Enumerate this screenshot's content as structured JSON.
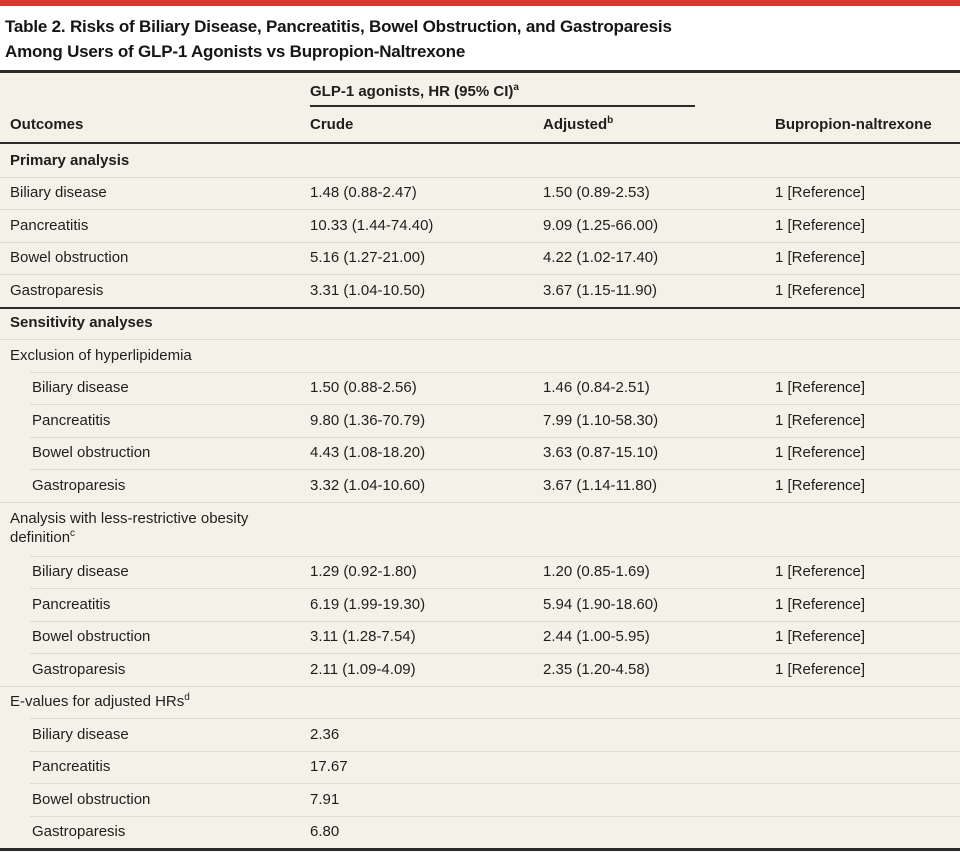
{
  "colors": {
    "accent_red": "#d8382e",
    "table_bg": "#f4f2e8",
    "dark_line": "#2c2b27",
    "thin_line": "#dfdccb"
  },
  "title": {
    "line1": "Table 2. Risks of Biliary Disease, Pancreatitis, Bowel Obstruction, and Gastroparesis",
    "line2": "Among Users of GLP-1 Agonists vs Bupropion-Naltrexone"
  },
  "header": {
    "outcomes": "Outcomes",
    "span_label": "GLP-1 agonists, HR (95% CI)",
    "span_sup": "a",
    "crude": "Crude",
    "adjusted": "Adjusted",
    "adjusted_sup": "b",
    "comparator": "Bupropion-naltrexone"
  },
  "rows": [
    {
      "kind": "section",
      "label": "Primary analysis",
      "sup": "",
      "crude": "",
      "adjusted": "",
      "comparator": ""
    },
    {
      "kind": "data",
      "label": "Biliary disease",
      "sup": "",
      "crude": "1.48 (0.88-2.47)",
      "adjusted": "1.50 (0.89-2.53)",
      "comparator": "1 [Reference]"
    },
    {
      "kind": "data",
      "label": "Pancreatitis",
      "sup": "",
      "crude": "10.33 (1.44-74.40)",
      "adjusted": "9.09 (1.25-66.00)",
      "comparator": "1 [Reference]"
    },
    {
      "kind": "data",
      "label": "Bowel obstruction",
      "sup": "",
      "crude": "5.16 (1.27-21.00)",
      "adjusted": "4.22 (1.02-17.40)",
      "comparator": "1 [Reference]"
    },
    {
      "kind": "data",
      "label": "Gastroparesis",
      "sup": "",
      "crude": "3.31 (1.04-10.50)",
      "adjusted": "3.67 (1.15-11.90)",
      "comparator": "1 [Reference]"
    },
    {
      "kind": "section",
      "label": "Sensitivity analyses",
      "sup": "",
      "crude": "",
      "adjusted": "",
      "comparator": ""
    },
    {
      "kind": "subsection",
      "label": "Exclusion of hyperlipidemia",
      "sup": "",
      "crude": "",
      "adjusted": "",
      "comparator": ""
    },
    {
      "kind": "data",
      "label": "Biliary disease",
      "sup": "",
      "crude": "1.50 (0.88-2.56)",
      "adjusted": "1.46 (0.84-2.51)",
      "comparator": "1 [Reference]"
    },
    {
      "kind": "data",
      "label": "Pancreatitis",
      "sup": "",
      "crude": "9.80 (1.36-70.79)",
      "adjusted": "7.99 (1.10-58.30)",
      "comparator": "1 [Reference]"
    },
    {
      "kind": "data",
      "label": "Bowel obstruction",
      "sup": "",
      "crude": "4.43 (1.08-18.20)",
      "adjusted": "3.63 (0.87-15.10)",
      "comparator": "1 [Reference]"
    },
    {
      "kind": "data",
      "label": "Gastroparesis",
      "sup": "",
      "crude": "3.32 (1.04-10.60)",
      "adjusted": "3.67 (1.14-11.80)",
      "comparator": "1 [Reference]"
    },
    {
      "kind": "subsection",
      "label": "Analysis with less-restrictive obesity definition",
      "sup": "c",
      "crude": "",
      "adjusted": "",
      "comparator": ""
    },
    {
      "kind": "data",
      "label": "Biliary disease",
      "sup": "",
      "crude": "1.29 (0.92-1.80)",
      "adjusted": "1.20 (0.85-1.69)",
      "comparator": "1 [Reference]"
    },
    {
      "kind": "data",
      "label": "Pancreatitis",
      "sup": "",
      "crude": "6.19 (1.99-19.30)",
      "adjusted": "5.94 (1.90-18.60)",
      "comparator": "1 [Reference]"
    },
    {
      "kind": "data",
      "label": "Bowel obstruction",
      "sup": "",
      "crude": "3.11 (1.28-7.54)",
      "adjusted": "2.44 (1.00-5.95)",
      "comparator": "1 [Reference]"
    },
    {
      "kind": "data",
      "label": "Gastroparesis",
      "sup": "",
      "crude": "2.11 (1.09-4.09)",
      "adjusted": "2.35 (1.20-4.58)",
      "comparator": "1 [Reference]"
    },
    {
      "kind": "subsection",
      "label": "E-values for adjusted HRs",
      "sup": "d",
      "crude": "",
      "adjusted": "",
      "comparator": ""
    },
    {
      "kind": "data",
      "label": "Biliary disease",
      "sup": "",
      "crude": "2.36",
      "adjusted": "",
      "comparator": ""
    },
    {
      "kind": "data",
      "label": "Pancreatitis",
      "sup": "",
      "crude": "17.67",
      "adjusted": "",
      "comparator": ""
    },
    {
      "kind": "data",
      "label": "Bowel obstruction",
      "sup": "",
      "crude": "7.91",
      "adjusted": "",
      "comparator": ""
    },
    {
      "kind": "data",
      "label": "Gastroparesis",
      "sup": "",
      "crude": "6.80",
      "adjusted": "",
      "comparator": ""
    }
  ]
}
